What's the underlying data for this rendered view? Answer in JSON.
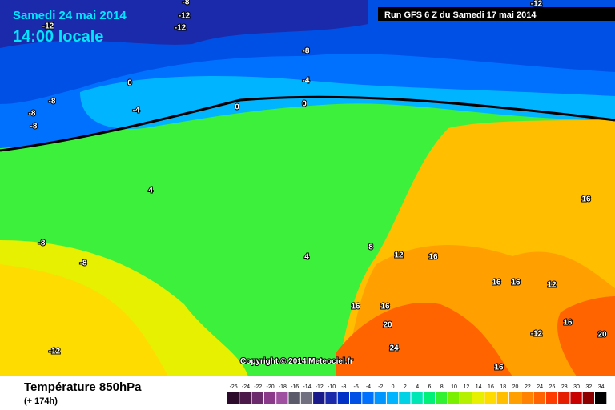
{
  "header": {
    "date": "Samedi 24 mai 2014",
    "time": "14:00 locale",
    "run": "Run GFS 6 Z du Samedi 17 mai 2014"
  },
  "map": {
    "contour_labels": [
      -8,
      -12,
      -12,
      -12,
      -12,
      -8,
      0,
      -4,
      -8,
      -4,
      0,
      0,
      -8,
      -8,
      4,
      16,
      8,
      12,
      16,
      4,
      -8,
      -8,
      16,
      16,
      12,
      16,
      16,
      20,
      16,
      -12,
      20,
      24,
      16,
      -12
    ],
    "copyright": "Copyright © 2014 Meteociel.fr"
  },
  "footer": {
    "title": "Température 850hPa",
    "lead": "(+ 174h)"
  },
  "scale": {
    "values": [
      -26,
      -24,
      -22,
      -20,
      -18,
      -16,
      -14,
      -12,
      -10,
      -8,
      -6,
      -4,
      -2,
      0,
      2,
      4,
      6,
      8,
      10,
      12,
      14,
      16,
      18,
      20,
      22,
      24,
      26,
      28,
      30,
      32,
      34
    ],
    "colors": [
      "#2b0a2b",
      "#4b1a4b",
      "#6b2a6b",
      "#8b3a8b",
      "#a050a0",
      "#5a5a6a",
      "#707080",
      "#1a1a8a",
      "#1a2aaa",
      "#0032c8",
      "#0050e6",
      "#0070ff",
      "#0096ff",
      "#00b4ff",
      "#00d2e6",
      "#00e6b4",
      "#00f07a",
      "#32f032",
      "#7af000",
      "#b4f000",
      "#e6f000",
      "#ffdc00",
      "#ffbe00",
      "#ffa000",
      "#ff8200",
      "#ff6400",
      "#ff3c00",
      "#e61e00",
      "#c80000",
      "#8c0000",
      "#000000"
    ]
  }
}
